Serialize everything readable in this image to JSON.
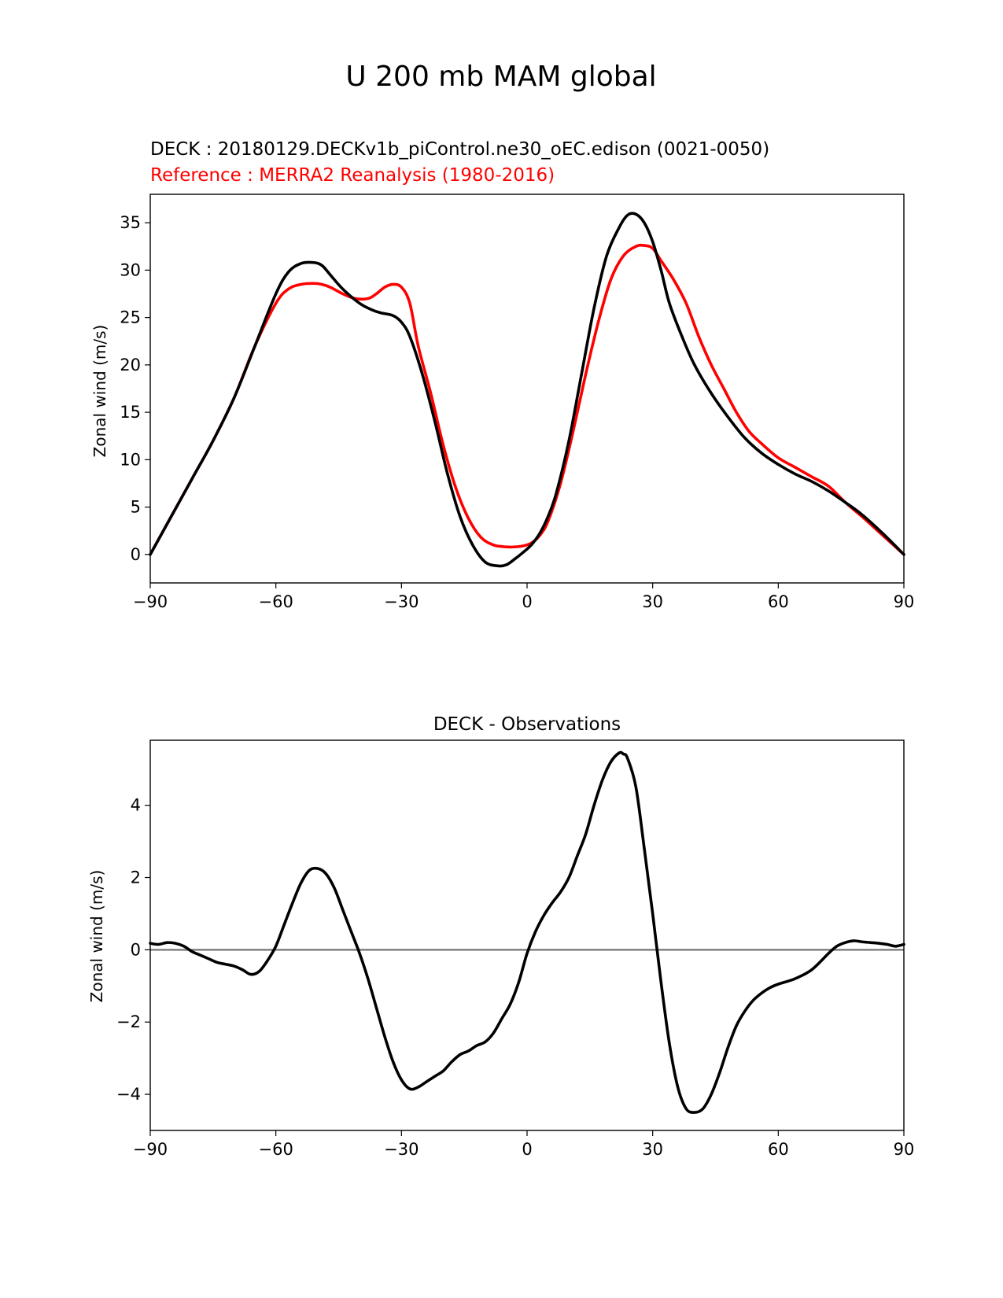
{
  "figure": {
    "title": "U 200 mb MAM global"
  },
  "colors": {
    "model": "#000000",
    "reference": "#ff0000",
    "zero_line": "#808080"
  },
  "chart_data": [
    {
      "type": "line",
      "title": "",
      "subtitle_test": "DECK : 20180129.DECKv1b_piControl.ne30_oEC.edison (0021-0050)",
      "subtitle_ref": "Reference : MERRA2 Reanalysis (1980-2016)",
      "xlabel": "",
      "ylabel": "Zonal wind (m/s)",
      "xlim": [
        -90,
        90
      ],
      "ylim": [
        -3,
        38
      ],
      "xticks": [
        -90,
        -60,
        -30,
        0,
        30,
        60,
        90
      ],
      "xtick_labels": [
        "−90",
        "−60",
        "−30",
        "0",
        "30",
        "60",
        "90"
      ],
      "yticks": [
        0,
        5,
        10,
        15,
        20,
        25,
        30,
        35
      ],
      "ytick_labels": [
        "0",
        "5",
        "10",
        "15",
        "20",
        "25",
        "30",
        "35"
      ],
      "grid": false,
      "series": [
        {
          "role": "test",
          "x": [
            -90,
            -85,
            -80,
            -75,
            -70,
            -65,
            -60,
            -57,
            -54,
            -51,
            -49,
            -47,
            -44,
            -40,
            -37,
            -35,
            -32,
            -30,
            -28,
            -25,
            -22,
            -19,
            -16,
            -13,
            -10,
            -7,
            -5,
            -3,
            -1,
            1,
            3,
            5,
            7,
            10,
            13,
            16,
            19,
            22,
            24,
            26,
            28,
            30,
            32,
            34,
            37,
            40,
            44,
            48,
            52,
            56,
            60,
            64,
            68,
            72,
            76,
            80,
            85,
            90
          ],
          "y": [
            0,
            4,
            8,
            12,
            16.5,
            22,
            27.5,
            29.8,
            30.7,
            30.8,
            30.5,
            29.5,
            28,
            26.5,
            25.8,
            25.5,
            25.2,
            24.5,
            23,
            19,
            14,
            8.5,
            4,
            1,
            -0.8,
            -1.2,
            -1.1,
            -0.5,
            0.2,
            1,
            2.2,
            4,
            6.5,
            12,
            19,
            26,
            31.5,
            34.5,
            35.8,
            35.9,
            35,
            33,
            30,
            26.5,
            23,
            20,
            17,
            14.5,
            12.3,
            10.7,
            9.5,
            8.5,
            7.7,
            6.7,
            5.5,
            4.2,
            2.2,
            0
          ]
        },
        {
          "role": "reference",
          "x": [
            -90,
            -85,
            -80,
            -75,
            -70,
            -65,
            -60,
            -57,
            -54,
            -51,
            -49,
            -47,
            -44,
            -41,
            -38,
            -36,
            -34,
            -32,
            -30,
            -28,
            -26,
            -23,
            -20,
            -17,
            -14,
            -11,
            -8,
            -5,
            -3,
            -1,
            1,
            3,
            5,
            8,
            11,
            14,
            17,
            20,
            23,
            26,
            28,
            30,
            32,
            35,
            38,
            41,
            44,
            47,
            50,
            53,
            56,
            60,
            64,
            68,
            72,
            76,
            80,
            85,
            90
          ],
          "y": [
            0,
            4,
            8,
            12,
            16.5,
            22,
            26.5,
            28,
            28.5,
            28.6,
            28.5,
            28.2,
            27.5,
            27,
            27,
            27.5,
            28.2,
            28.5,
            28.2,
            26.5,
            22,
            17,
            11.5,
            7,
            3.8,
            1.8,
            1,
            0.8,
            0.8,
            0.9,
            1.2,
            2,
            3.5,
            7.5,
            13,
            19,
            24.5,
            29,
            31.5,
            32.5,
            32.6,
            32.3,
            31,
            29,
            26.5,
            23,
            20,
            17.5,
            15,
            13,
            11.7,
            10.2,
            9.2,
            8.2,
            7.2,
            5.5,
            4,
            2,
            0
          ]
        }
      ]
    },
    {
      "type": "line",
      "title": "DECK - Observations",
      "xlabel": "",
      "ylabel": "Zonal wind (m/s)",
      "xlim": [
        -90,
        90
      ],
      "ylim": [
        -5,
        5.8
      ],
      "xticks": [
        -90,
        -60,
        -30,
        0,
        30,
        60,
        90
      ],
      "xtick_labels": [
        "−90",
        "−60",
        "−30",
        "0",
        "30",
        "60",
        "90"
      ],
      "yticks": [
        -4,
        -2,
        0,
        2,
        4
      ],
      "ytick_labels": [
        "−4",
        "−2",
        "0",
        "2",
        "4"
      ],
      "grid": false,
      "zero_line": 0,
      "series": [
        {
          "role": "difference",
          "x": [
            -90,
            -88,
            -86,
            -84,
            -82,
            -80,
            -78,
            -76,
            -74,
            -72,
            -70,
            -68,
            -66,
            -64,
            -62,
            -60,
            -58,
            -56,
            -54,
            -52,
            -50,
            -48,
            -46,
            -44,
            -42,
            -40,
            -38,
            -36,
            -34,
            -32,
            -30,
            -28,
            -26,
            -24,
            -22,
            -20,
            -18,
            -16,
            -14,
            -12,
            -10,
            -8,
            -6,
            -4,
            -2,
            0,
            2,
            4,
            6,
            8,
            10,
            12,
            14,
            16,
            18,
            20,
            22,
            23,
            24,
            26,
            28,
            30,
            32,
            34,
            36,
            38,
            40,
            42,
            44,
            46,
            48,
            50,
            52,
            54,
            56,
            58,
            60,
            64,
            68,
            72,
            74,
            76,
            78,
            80,
            82,
            84,
            86,
            88,
            90
          ],
          "y": [
            0.18,
            0.15,
            0.2,
            0.18,
            0.1,
            -0.05,
            -0.15,
            -0.25,
            -0.35,
            -0.4,
            -0.45,
            -0.55,
            -0.68,
            -0.6,
            -0.3,
            0.1,
            0.7,
            1.3,
            1.85,
            2.2,
            2.25,
            2.1,
            1.7,
            1.1,
            0.5,
            -0.1,
            -0.8,
            -1.6,
            -2.4,
            -3.1,
            -3.6,
            -3.85,
            -3.8,
            -3.65,
            -3.5,
            -3.35,
            -3.1,
            -2.9,
            -2.8,
            -2.65,
            -2.55,
            -2.3,
            -1.9,
            -1.5,
            -0.9,
            -0.1,
            0.5,
            0.95,
            1.3,
            1.6,
            2,
            2.6,
            3.2,
            4,
            4.7,
            5.2,
            5.45,
            5.42,
            5.3,
            4.5,
            2.8,
            1,
            -0.9,
            -2.6,
            -3.8,
            -4.4,
            -4.5,
            -4.4,
            -4,
            -3.4,
            -2.7,
            -2.1,
            -1.7,
            -1.4,
            -1.2,
            -1.05,
            -0.95,
            -0.8,
            -0.55,
            -0.1,
            0.1,
            0.2,
            0.25,
            0.22,
            0.2,
            0.18,
            0.15,
            0.1,
            0.15
          ]
        }
      ]
    }
  ]
}
